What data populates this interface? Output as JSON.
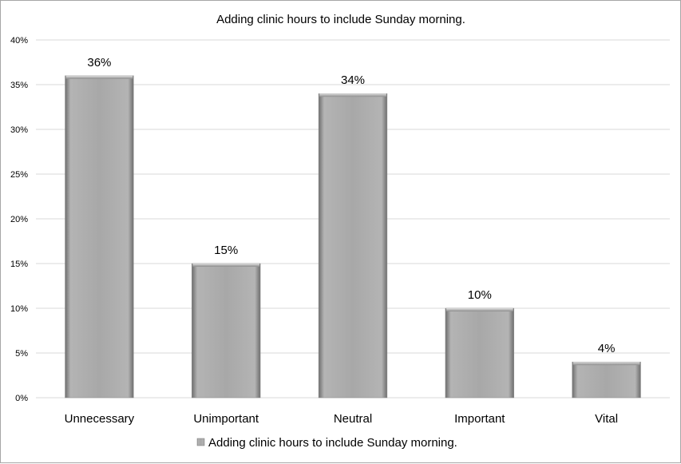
{
  "chart_data": {
    "type": "bar",
    "title": "Adding clinic hours to include Sunday morning.",
    "categories": [
      "Unnecessary",
      "Unimportant",
      "Neutral",
      "Important",
      "Vital"
    ],
    "series": [
      {
        "name": "Adding clinic hours to include Sunday morning.",
        "values": [
          36,
          15,
          34,
          10,
          4
        ],
        "data_labels": [
          "36%",
          "15%",
          "34%",
          "10%",
          "4%"
        ],
        "color": "#a6a6a6"
      }
    ],
    "y_ticks": [
      "0%",
      "5%",
      "10%",
      "15%",
      "20%",
      "25%",
      "30%",
      "35%",
      "40%"
    ],
    "ylim": [
      0,
      40
    ],
    "grid": true,
    "legend_position": "bottom"
  }
}
